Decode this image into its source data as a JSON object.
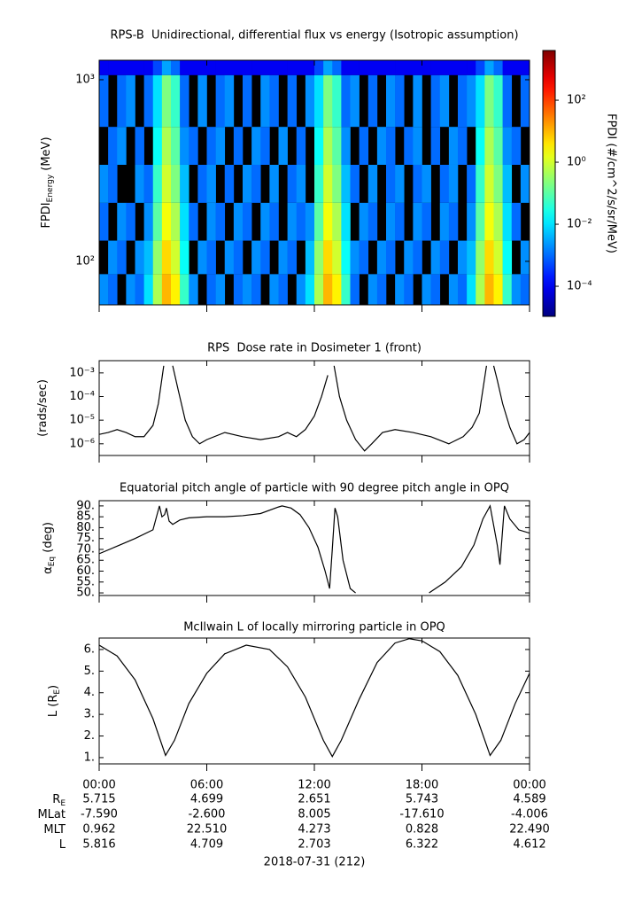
{
  "chart_data": [
    {
      "type": "heatmap",
      "title": "RPS-B  Unidirectional, differential flux vs energy (Isotropic assumption)",
      "ylabel": {
        "text": "FPDI",
        "sub": "Energy",
        "unit": " (MeV)"
      },
      "xlim": [
        0,
        24
      ],
      "x_edges": [
        0,
        0.5,
        1,
        1.5,
        2,
        2.5,
        3,
        3.5,
        4,
        4.5,
        5,
        5.5,
        6,
        6.5,
        7,
        7.5,
        8,
        8.5,
        9,
        9.5,
        10,
        10.5,
        11,
        11.5,
        12,
        12.5,
        13,
        13.5,
        14,
        14.5,
        15,
        15.5,
        16,
        16.5,
        17,
        17.5,
        18,
        18.5,
        19,
        19.5,
        20,
        20.5,
        21,
        21.5,
        22,
        22.5,
        23,
        23.5,
        24
      ],
      "y_edges": [
        57.6,
        85,
        130,
        210,
        340,
        550,
        1060,
        1280
      ],
      "ylog": true,
      "ylim": [
        57.6,
        1280
      ],
      "yticks": [
        {
          "value": 100,
          "label": "10²"
        },
        {
          "value": 1000,
          "label": "10³"
        }
      ],
      "z": [
        [
          0.002,
          0.001,
          null,
          0.002,
          0.001,
          0.01,
          0.5,
          10,
          3,
          0.05,
          0.002,
          null,
          0.001,
          0.002,
          null,
          0.001,
          0.002,
          0.001,
          null,
          0.002,
          0.001,
          null,
          0.002,
          0.01,
          0.5,
          10,
          3,
          0.05,
          0.001,
          null,
          0.002,
          0.001,
          null,
          0.002,
          0.001,
          null,
          0.002,
          0.001,
          null,
          0.002,
          0.001,
          0.01,
          0.5,
          10,
          3,
          0.05,
          0.002,
          0.001
        ],
        [
          null,
          0.002,
          0.001,
          null,
          0.002,
          0.005,
          0.3,
          5,
          1,
          0.02,
          null,
          0.002,
          0.001,
          null,
          0.002,
          0.001,
          null,
          0.002,
          0.001,
          null,
          0.002,
          0.001,
          null,
          0.005,
          0.3,
          5,
          1,
          0.02,
          0.002,
          0.001,
          null,
          0.002,
          0.001,
          null,
          0.002,
          0.001,
          null,
          0.002,
          0.001,
          null,
          0.002,
          0.005,
          0.3,
          5,
          1,
          0.02,
          null,
          0.002
        ],
        [
          0.001,
          null,
          0.002,
          0.001,
          null,
          0.002,
          0.1,
          2,
          0.5,
          0.01,
          0.001,
          null,
          0.002,
          0.001,
          null,
          0.002,
          0.001,
          null,
          0.002,
          0.001,
          null,
          0.002,
          0.001,
          0.002,
          0.1,
          2,
          0.5,
          0.01,
          null,
          0.002,
          0.001,
          null,
          0.002,
          0.001,
          null,
          0.002,
          0.001,
          null,
          0.002,
          0.001,
          null,
          0.002,
          0.1,
          2,
          0.5,
          0.01,
          0.001,
          null
        ],
        [
          0.002,
          0.001,
          null,
          null,
          0.002,
          0.001,
          0.05,
          1,
          0.2,
          0.005,
          null,
          0.001,
          0.002,
          null,
          0.001,
          null,
          0.002,
          0.001,
          null,
          0.002,
          null,
          0.001,
          0.002,
          null,
          0.05,
          1,
          0.2,
          0.005,
          0.001,
          null,
          0.002,
          null,
          0.001,
          0.002,
          null,
          0.001,
          0.002,
          null,
          0.001,
          0.002,
          null,
          0.001,
          0.05,
          1,
          0.2,
          0.005,
          null,
          0.002
        ],
        [
          null,
          0.001,
          0.002,
          null,
          0.001,
          null,
          0.02,
          0.5,
          0.1,
          0.002,
          0.001,
          null,
          0.001,
          0.002,
          null,
          0.001,
          null,
          0.002,
          0.001,
          null,
          0.002,
          null,
          0.001,
          null,
          0.02,
          0.5,
          0.1,
          0.002,
          null,
          0.001,
          null,
          0.002,
          0.001,
          null,
          0.001,
          0.002,
          null,
          0.001,
          null,
          0.002,
          0.001,
          null,
          0.02,
          0.5,
          0.1,
          0.002,
          0.001,
          null
        ],
        [
          0.001,
          null,
          0.001,
          0.002,
          null,
          0.001,
          0.01,
          0.2,
          0.05,
          0.001,
          null,
          0.002,
          null,
          0.001,
          0.002,
          null,
          0.001,
          null,
          0.002,
          0.001,
          null,
          0.001,
          null,
          0.002,
          0.01,
          0.2,
          0.05,
          0.001,
          0.002,
          null,
          0.001,
          null,
          0.002,
          0.001,
          null,
          0.002,
          null,
          0.001,
          0.002,
          null,
          0.001,
          0.002,
          0.01,
          0.2,
          0.05,
          0.001,
          null,
          0.001
        ],
        [
          0.0001,
          0.0001,
          0.0001,
          0.0001,
          0.0001,
          0.0001,
          0.0005,
          0.003,
          0.001,
          0.0001,
          0.0001,
          0.0001,
          0.0001,
          0.0001,
          0.0001,
          0.0001,
          0.0001,
          0.0001,
          0.0001,
          0.0001,
          0.0001,
          0.0001,
          0.0001,
          0.0001,
          0.0005,
          0.003,
          0.001,
          0.0001,
          0.0001,
          0.0001,
          0.0001,
          0.0001,
          0.0001,
          0.0001,
          0.0001,
          0.0001,
          0.0001,
          0.0001,
          0.0001,
          0.0001,
          0.0001,
          0.0001,
          0.0005,
          0.003,
          0.001,
          0.0001,
          0.0001,
          0.0001
        ]
      ],
      "zlim": [
        1.07e-05,
        4000
      ],
      "zlog": true,
      "zticks": [
        {
          "value": 0.0001,
          "label": "10⁻⁴"
        },
        {
          "value": 0.01,
          "label": "10⁻²"
        },
        {
          "value": 1,
          "label": "10⁰"
        },
        {
          "value": 100,
          "label": "10²"
        }
      ],
      "zlabel": "FPDI (#/cm^2/s/sr/MeV)",
      "colormap": "jet"
    },
    {
      "type": "line",
      "title": "RPS  Dose rate in Dosimeter 1 (front)",
      "ylabel": {
        "text": "(rads/sec)"
      },
      "xlim": [
        0,
        24
      ],
      "ylog": true,
      "ylim": [
        3.2e-07,
        0.0033
      ],
      "yticks": [
        {
          "value": 1e-06,
          "label": "10⁻⁶"
        },
        {
          "value": 1e-05,
          "label": "10⁻⁵"
        },
        {
          "value": 0.0001,
          "label": "10⁻⁴"
        },
        {
          "value": 0.001,
          "label": "10⁻³"
        }
      ],
      "color": "#000000",
      "x": [
        0,
        0.5,
        1,
        1.5,
        2,
        2.5,
        3,
        3.3,
        3.6,
        3.75,
        3.95,
        4.1,
        4.4,
        4.8,
        5.2,
        5.6,
        6,
        7,
        8,
        9,
        10,
        10.5,
        11,
        11.5,
        12,
        12.4,
        12.75,
        12.95,
        13.1,
        13.4,
        13.8,
        14.3,
        14.8,
        15.2,
        15.8,
        16.5,
        17.5,
        18.5,
        19.5,
        20.3,
        20.8,
        21.2,
        21.6,
        21.8,
        22.0,
        22.2,
        22.5,
        22.9,
        23.3,
        23.7,
        24
      ],
      "values": [
        2.5e-06,
        3e-06,
        4e-06,
        3e-06,
        2e-06,
        2e-06,
        6e-06,
        5e-05,
        0.002,
        null,
        null,
        0.002,
        0.0002,
        1e-05,
        2e-06,
        1e-06,
        1.5e-06,
        3e-06,
        2e-06,
        1.5e-06,
        2e-06,
        3e-06,
        2e-06,
        4e-06,
        1.5e-05,
        0.0001,
        0.0008,
        null,
        0.002,
        0.0001,
        1e-05,
        1.5e-06,
        5e-07,
        1e-06,
        3e-06,
        4e-06,
        3e-06,
        2e-06,
        1e-06,
        2e-06,
        5e-06,
        2e-05,
        0.002,
        null,
        0.002,
        0.0005,
        5e-05,
        5e-06,
        1e-06,
        1.5e-06,
        3e-06
      ]
    },
    {
      "type": "line",
      "title": "Equatorial pitch angle of particle with 90 degree pitch angle in OPQ",
      "ylabel": {
        "text": "α",
        "sub": "Eq",
        "unit": " (deg)"
      },
      "xlim": [
        0,
        24
      ],
      "ylim": [
        48.8,
        92.4
      ],
      "yticks": [
        {
          "value": 50,
          "label": "50."
        },
        {
          "value": 55,
          "label": "55."
        },
        {
          "value": 60,
          "label": "60."
        },
        {
          "value": 65,
          "label": "65."
        },
        {
          "value": 70,
          "label": "70."
        },
        {
          "value": 75,
          "label": "75."
        },
        {
          "value": 80,
          "label": "80."
        },
        {
          "value": 85,
          "label": "85."
        },
        {
          "value": 90,
          "label": "90."
        }
      ],
      "color": "#000000",
      "x": [
        0,
        1,
        2,
        3,
        3.36,
        3.5,
        3.65,
        3.75,
        3.9,
        4.1,
        4.5,
        5,
        6,
        7,
        8,
        9,
        10,
        10.2,
        10.7,
        11.2,
        11.7,
        12.2,
        12.6,
        12.85,
        13.0,
        13.15,
        13.3,
        13.6,
        14.0,
        14.3,
        16,
        18.4,
        19.3,
        20.2,
        20.9,
        21.4,
        21.8,
        22.2,
        22.35,
        22.6,
        22.9,
        23.4,
        24
      ],
      "values": [
        68,
        71.5,
        75,
        79,
        90,
        85,
        86,
        89,
        83,
        81.5,
        83.5,
        84.5,
        85,
        85,
        85.5,
        86.5,
        89.5,
        90,
        89,
        86,
        80,
        71,
        60,
        52,
        70,
        89,
        85,
        65,
        52,
        50,
        null,
        50,
        55,
        62,
        72,
        84,
        90,
        72,
        63,
        90,
        84,
        79,
        77.5
      ]
    },
    {
      "type": "line",
      "title": "McIlwain L of locally mirroring particle in OPQ",
      "ylabel": {
        "text": "L (R",
        "sub": "E",
        "unit": ")"
      },
      "xlim": [
        0,
        24
      ],
      "xticks": [
        {
          "value": 0,
          "label": "00:00"
        },
        {
          "value": 6,
          "label": "06:00"
        },
        {
          "value": 12,
          "label": "12:00"
        },
        {
          "value": 18,
          "label": "18:00"
        },
        {
          "value": 24,
          "label": "00:00"
        }
      ],
      "ylim": [
        0.71,
        6.53
      ],
      "yticks": [
        {
          "value": 1,
          "label": "1."
        },
        {
          "value": 2,
          "label": "2."
        },
        {
          "value": 3,
          "label": "3."
        },
        {
          "value": 4,
          "label": "4."
        },
        {
          "value": 5,
          "label": "5."
        },
        {
          "value": 6,
          "label": "6."
        }
      ],
      "color": "#000000",
      "x": [
        0,
        1,
        2,
        3,
        3.7,
        4.2,
        5,
        6,
        7,
        8.2,
        9.5,
        10.5,
        11.5,
        12.5,
        13,
        13.5,
        14.5,
        15.5,
        16.5,
        17.3,
        18,
        19,
        20,
        21,
        21.8,
        22.4,
        23.2,
        24
      ],
      "values": [
        6.2,
        5.7,
        4.6,
        2.8,
        1.1,
        1.8,
        3.5,
        4.9,
        5.8,
        6.2,
        6.0,
        5.2,
        3.8,
        1.8,
        1.05,
        1.8,
        3.7,
        5.4,
        6.3,
        6.5,
        6.4,
        5.9,
        4.8,
        3.0,
        1.1,
        1.8,
        3.5,
        4.9
      ]
    }
  ],
  "ephemeris": {
    "rows": [
      {
        "label": "R",
        "sub": "E",
        "values": [
          "5.715",
          "4.699",
          "2.651",
          "5.743",
          "4.589"
        ]
      },
      {
        "label": "MLat",
        "values": [
          "-7.590",
          "-2.600",
          "8.005",
          "-17.610",
          "-4.006"
        ]
      },
      {
        "label": "MLT",
        "values": [
          "0.962",
          "22.510",
          "4.273",
          "0.828",
          "22.490"
        ]
      },
      {
        "label": "L",
        "values": [
          "5.816",
          "4.709",
          "2.703",
          "6.322",
          "4.612"
        ]
      }
    ],
    "date": "2018-07-31 (212)"
  }
}
